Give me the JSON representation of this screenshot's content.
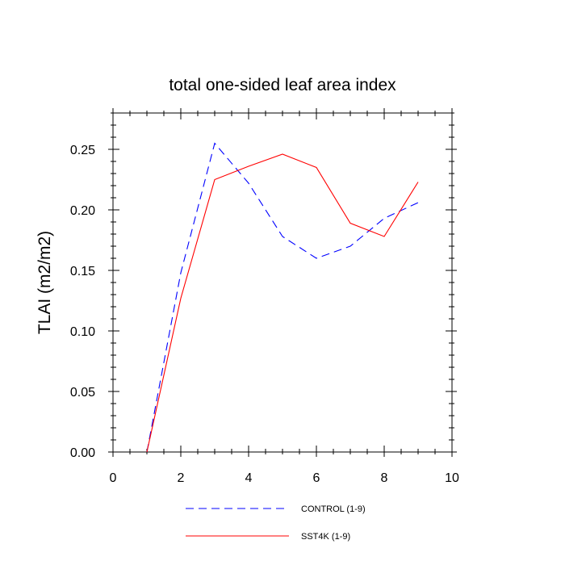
{
  "chart_data": {
    "type": "line",
    "title": "total one-sided leaf area index",
    "xlabel": "",
    "ylabel": "TLAI  (m2/m2)",
    "xlim": [
      0,
      10
    ],
    "ylim": [
      0,
      0.28
    ],
    "xticks": [
      0,
      2,
      4,
      6,
      8,
      10
    ],
    "xtick_labels": [
      "0",
      "2",
      "4",
      "6",
      "8",
      "10"
    ],
    "yticks": [
      0,
      0.05,
      0.1,
      0.15,
      0.2,
      0.25
    ],
    "ytick_labels": [
      "0.00",
      "0.05",
      "0.10",
      "0.15",
      "0.20",
      "0.25"
    ],
    "grid": false,
    "legend_position": "bottom",
    "series": [
      {
        "name": "CONTROL (1-9)",
        "color": "#0000ff",
        "dash": "dashed",
        "x": [
          1,
          2,
          3,
          4,
          5,
          6,
          7,
          8,
          9
        ],
        "values": [
          0.0,
          0.148,
          0.255,
          0.222,
          0.178,
          0.16,
          0.17,
          0.193,
          0.206
        ]
      },
      {
        "name": "SST4K (1-9)",
        "color": "#ff0000",
        "dash": "solid",
        "x": [
          1,
          2,
          3,
          4,
          5,
          6,
          7,
          8,
          9
        ],
        "values": [
          0.0,
          0.127,
          0.225,
          0.236,
          0.246,
          0.235,
          0.189,
          0.178,
          0.223
        ]
      }
    ]
  }
}
